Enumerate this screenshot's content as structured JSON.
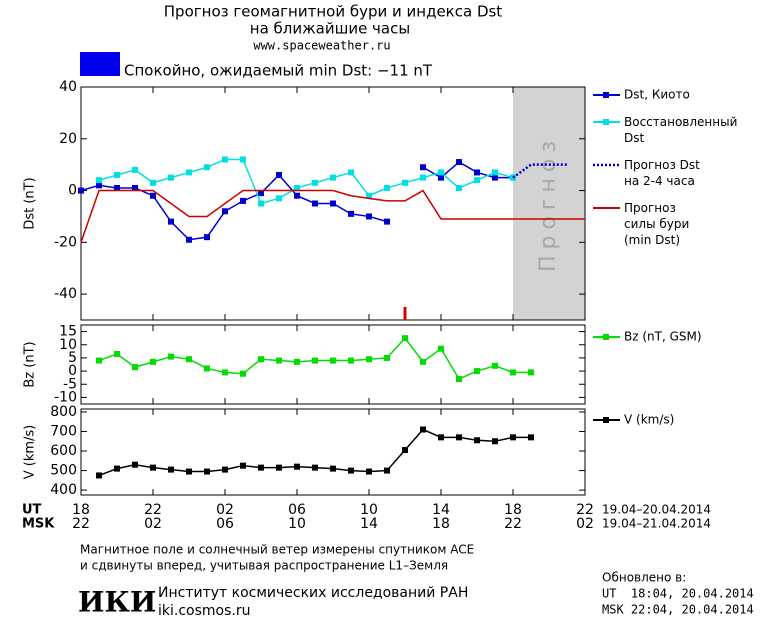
{
  "header": {
    "title": "Прогноз геомагнитной бури и индекса Dst",
    "subtitle": "на ближайшие часы",
    "url": "www.spaceweather.ru",
    "status": {
      "text": "Спокойно, ожидаемый min Dst: −11 nT",
      "color": "#0000ee"
    }
  },
  "chart_data": [
    {
      "type": "line",
      "ylabel": "Dst (nT)",
      "xlim": [
        0,
        28
      ],
      "ylim": [
        -50,
        40
      ],
      "yticks": [
        -40,
        -20,
        0,
        20,
        40
      ],
      "forecast_band": {
        "x": [
          24,
          28
        ],
        "label": "Прогноз",
        "color": "#d3d3d3"
      },
      "now_marker": {
        "x": 18,
        "color": "#dd0000"
      },
      "series": [
        {
          "name": "Dst, Киото",
          "color": "#0000cc",
          "marker": "square",
          "style": "solid",
          "x": [
            0,
            1,
            2,
            3,
            4,
            5,
            6,
            7,
            8,
            9,
            10,
            11,
            12,
            13,
            14,
            15,
            16,
            17,
            18,
            19,
            20,
            21,
            22,
            23,
            24
          ],
          "values": [
            0,
            2,
            1,
            1,
            -2,
            -12,
            -19,
            -18,
            -8,
            -4,
            -1,
            6,
            -2,
            -5,
            -5,
            -9,
            -10,
            -12,
            null,
            9,
            5,
            11,
            7,
            5,
            5
          ]
        },
        {
          "name": "Восстановленный\nDst",
          "color": "#00e0e0",
          "marker": "square",
          "style": "solid",
          "x": [
            1,
            2,
            3,
            4,
            5,
            6,
            7,
            8,
            9,
            10,
            11,
            12,
            13,
            14,
            15,
            16,
            17,
            18,
            19,
            20,
            21,
            22,
            23,
            24
          ],
          "values": [
            4,
            6,
            8,
            3,
            5,
            7,
            9,
            12,
            12,
            -5,
            -3,
            1,
            3,
            5,
            7,
            -2,
            1,
            3,
            5,
            7,
            1,
            4,
            7,
            5
          ]
        },
        {
          "name": "Прогноз Dst\nна 2-4 часа",
          "color": "#0000cc",
          "marker": "none",
          "style": "dotted",
          "x": [
            24,
            25,
            26,
            27
          ],
          "values": [
            5,
            10,
            10,
            10
          ]
        },
        {
          "name": "Прогноз\nсилы бури\n(min Dst)",
          "color": "#cc0000",
          "marker": "none",
          "style": "solid",
          "x": [
            0,
            1,
            4,
            6,
            7,
            9,
            14,
            15,
            16,
            17,
            18,
            19,
            20,
            28
          ],
          "values": [
            -20,
            0,
            0,
            -10,
            -10,
            0,
            0,
            -2,
            -3,
            -4,
            -4,
            0,
            -11,
            -11
          ]
        }
      ]
    },
    {
      "type": "line",
      "ylabel": "Bz (nT)",
      "xlim": [
        0,
        28
      ],
      "ylim": [
        -12.5,
        17.5
      ],
      "yticks": [
        -10,
        -5,
        0,
        5,
        10,
        15
      ],
      "series": [
        {
          "name": "Bz (nT, GSM)",
          "color": "#00dd00",
          "marker": "square",
          "style": "solid",
          "x": [
            1,
            2,
            3,
            4,
            5,
            6,
            7,
            8,
            9,
            10,
            11,
            12,
            13,
            14,
            15,
            16,
            17,
            18,
            19,
            20,
            21,
            22,
            23,
            24,
            25
          ],
          "values": [
            4,
            6.5,
            1.5,
            3.5,
            5.5,
            4.5,
            1,
            -0.5,
            -1,
            4.5,
            4,
            3.5,
            4,
            4,
            4,
            4.5,
            5,
            12.5,
            3.5,
            8.5,
            -3,
            0,
            2,
            -0.5,
            -0.5
          ]
        }
      ]
    },
    {
      "type": "line",
      "ylabel": "V (km/s)",
      "xlim": [
        0,
        28
      ],
      "ylim": [
        375,
        815
      ],
      "yticks": [
        400,
        500,
        600,
        700,
        800
      ],
      "xlabel": "UT",
      "x2label": "MSK",
      "xdate": "19.04–20.04.2014",
      "x2date": "19.04–21.04.2014",
      "xticks": [
        {
          "value": 0,
          "label": "18"
        },
        {
          "value": 4,
          "label": "22"
        },
        {
          "value": 8,
          "label": "02"
        },
        {
          "value": 12,
          "label": "06"
        },
        {
          "value": 16,
          "label": "10"
        },
        {
          "value": 20,
          "label": "14"
        },
        {
          "value": 24,
          "label": "18"
        },
        {
          "value": 28,
          "label": "22"
        }
      ],
      "x2ticks": [
        {
          "value": 0,
          "label": "22"
        },
        {
          "value": 4,
          "label": "02"
        },
        {
          "value": 8,
          "label": "06"
        },
        {
          "value": 12,
          "label": "10"
        },
        {
          "value": 16,
          "label": "14"
        },
        {
          "value": 20,
          "label": "18"
        },
        {
          "value": 24,
          "label": "22"
        },
        {
          "value": 28,
          "label": "02"
        }
      ],
      "series": [
        {
          "name": "V (km/s)",
          "color": "#000000",
          "marker": "square",
          "style": "solid",
          "x": [
            1,
            2,
            3,
            4,
            5,
            6,
            7,
            8,
            9,
            10,
            11,
            12,
            13,
            14,
            15,
            16,
            17,
            18,
            19,
            20,
            21,
            22,
            23,
            24,
            25
          ],
          "values": [
            475,
            510,
            530,
            515,
            505,
            495,
            495,
            505,
            525,
            515,
            515,
            520,
            515,
            510,
            500,
            495,
            500,
            605,
            710,
            670,
            670,
            655,
            650,
            670,
            670
          ]
        }
      ]
    }
  ],
  "footer": {
    "note1": "Магнитное поле и солнечный ветер измерены спутником ACE",
    "note2": "и сдвинуты вперед, учитывая распространение L1–Земля",
    "logo": "ИКИ",
    "institute": "Институт космических исследований РАН",
    "site": "iki.cosmos.ru",
    "updated": "Обновлено в:",
    "updated_ut": "UT  18:04, 20.04.2014",
    "updated_msk": "MSK 22:04, 20.04.2014"
  }
}
